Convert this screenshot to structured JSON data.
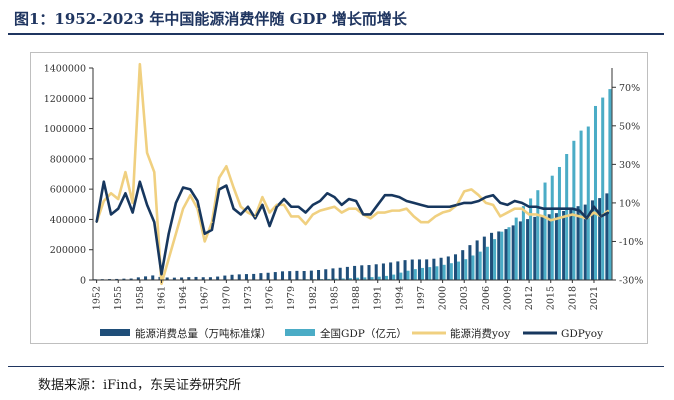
{
  "title": "图1：1952-2023 年中国能源消费伴随 GDP 增长而增长",
  "source": "数据来源：iFind，东吴证券研究所",
  "colors": {
    "energy_total_bar": "#1f4e79",
    "gdp_bar": "#4bacc6",
    "energy_yoy_line": "#f0d080",
    "gdp_yoy_line": "#17375e",
    "title": "#1f3560"
  },
  "chart_data": {
    "type": "bar",
    "title": "",
    "xlabel": "",
    "ylabel": "",
    "x": [
      1952,
      1953,
      1954,
      1955,
      1956,
      1957,
      1958,
      1959,
      1960,
      1961,
      1962,
      1963,
      1964,
      1965,
      1966,
      1967,
      1968,
      1969,
      1970,
      1971,
      1972,
      1973,
      1974,
      1975,
      1976,
      1977,
      1978,
      1979,
      1980,
      1981,
      1982,
      1983,
      1984,
      1985,
      1986,
      1987,
      1988,
      1989,
      1990,
      1991,
      1992,
      1993,
      1994,
      1995,
      1996,
      1997,
      1998,
      1999,
      2000,
      2001,
      2002,
      2003,
      2004,
      2005,
      2006,
      2007,
      2008,
      2009,
      2010,
      2011,
      2012,
      2013,
      2014,
      2015,
      2016,
      2017,
      2018,
      2019,
      2020,
      2021,
      2022,
      2023
    ],
    "x_tick_labels": [
      "1952",
      "1955",
      "1958",
      "1961",
      "1964",
      "1967",
      "1970",
      "1973",
      "1976",
      "1979",
      "1982",
      "1985",
      "1988",
      "1991",
      "1994",
      "1997",
      "2000",
      "2003",
      "2006",
      "2009",
      "2012",
      "2015",
      "2018",
      "2021"
    ],
    "y_left_ticks": [
      "0",
      "200000",
      "400000",
      "600000",
      "800000",
      "1000000",
      "1200000",
      "1400000"
    ],
    "y_left_lim": [
      0,
      1400000
    ],
    "y_right_ticks": [
      "-30%",
      "-10%",
      "10%",
      "30%",
      "50%",
      "70%"
    ],
    "y_right_lim": [
      -30,
      80
    ],
    "series": [
      {
        "name": "能源消费总量（万吨标准煤）",
        "axis": "left",
        "kind": "bar",
        "values": [
          4871,
          5411,
          6234,
          6968,
          8800,
          9644,
          17599,
          23926,
          30188,
          20390,
          16540,
          15567,
          16637,
          18901,
          20269,
          18328,
          18405,
          22730,
          29291,
          34496,
          37273,
          39109,
          40144,
          45425,
          47831,
          52354,
          57144,
          58588,
          60275,
          59447,
          62067,
          66040,
          70904,
          76682,
          80850,
          86632,
          92997,
          96934,
          98703,
          103783,
          109170,
          115993,
          122737,
          131176,
          135192,
          135909,
          136184,
          140569,
          146964,
          155547,
          169577,
          197083,
          230281,
          261369,
          286467,
          311442,
          320611,
          336126,
          360648,
          387043,
          402138,
          416913,
          428334,
          434113,
          441492,
          455827,
          471925,
          487488,
          498000,
          525896,
          541000,
          572000
        ]
      },
      {
        "name": "全国GDP（亿元）",
        "axis": "left",
        "kind": "bar",
        "values": [
          679,
          824,
          859,
          910,
          1028,
          1068,
          1307,
          1439,
          1457,
          1220,
          1149,
          1233,
          1454,
          1716,
          1868,
          1773,
          1723,
          1937,
          2252,
          2426,
          2518,
          2720,
          2789,
          2997,
          2943,
          3201,
          3679,
          4100,
          4588,
          4936,
          5373,
          6021,
          7279,
          9099,
          10376,
          12175,
          15180,
          17180,
          18873,
          22006,
          27195,
          35673,
          48638,
          61340,
          71814,
          79715,
          85196,
          90564,
          100280,
          110863,
          121717,
          137422,
          161840,
          187319,
          219439,
          270092,
          319245,
          348518,
          412119,
          487940,
          538580,
          592963,
          643563,
          688858,
          746395,
          832036,
          919281,
          986515,
          1013567,
          1149237,
          1204724,
          1260582
        ]
      },
      {
        "name": "能源消费yoy",
        "axis": "right",
        "kind": "line",
        "values": [
          0,
          11,
          15,
          12,
          26,
          10,
          82,
          36,
          26,
          -32,
          -19,
          -6,
          7,
          14,
          7,
          -10,
          0,
          23,
          29,
          18,
          8,
          5,
          3,
          13,
          5,
          9,
          9,
          3,
          3,
          -1,
          4,
          6,
          7,
          8,
          5,
          7,
          7,
          4,
          2,
          5,
          5,
          6,
          6,
          7,
          3,
          0,
          0,
          3,
          5,
          6,
          9,
          16,
          17,
          14,
          10,
          9,
          3,
          5,
          7,
          7,
          4,
          4,
          3,
          1,
          2,
          3,
          4,
          3,
          2,
          5,
          3,
          6
        ]
      },
      {
        "name": "GDPyoy",
        "axis": "right",
        "kind": "line",
        "values": [
          0,
          21,
          4,
          7,
          15,
          5,
          21,
          9,
          0,
          -27,
          -6,
          10,
          18,
          17,
          11,
          -6,
          -4,
          17,
          19,
          7,
          4,
          8,
          2,
          9,
          -2,
          8,
          12,
          8,
          8,
          5,
          9,
          11,
          15,
          13,
          9,
          12,
          11,
          4,
          4,
          9,
          14,
          14,
          13,
          11,
          10,
          9,
          8,
          8,
          8,
          8,
          9,
          10,
          10,
          11,
          13,
          14,
          10,
          9,
          11,
          10,
          8,
          8,
          7,
          7,
          7,
          7,
          7,
          6,
          2,
          8,
          3,
          5
        ]
      }
    ],
    "legend_placement": "bottom",
    "grid": false
  }
}
